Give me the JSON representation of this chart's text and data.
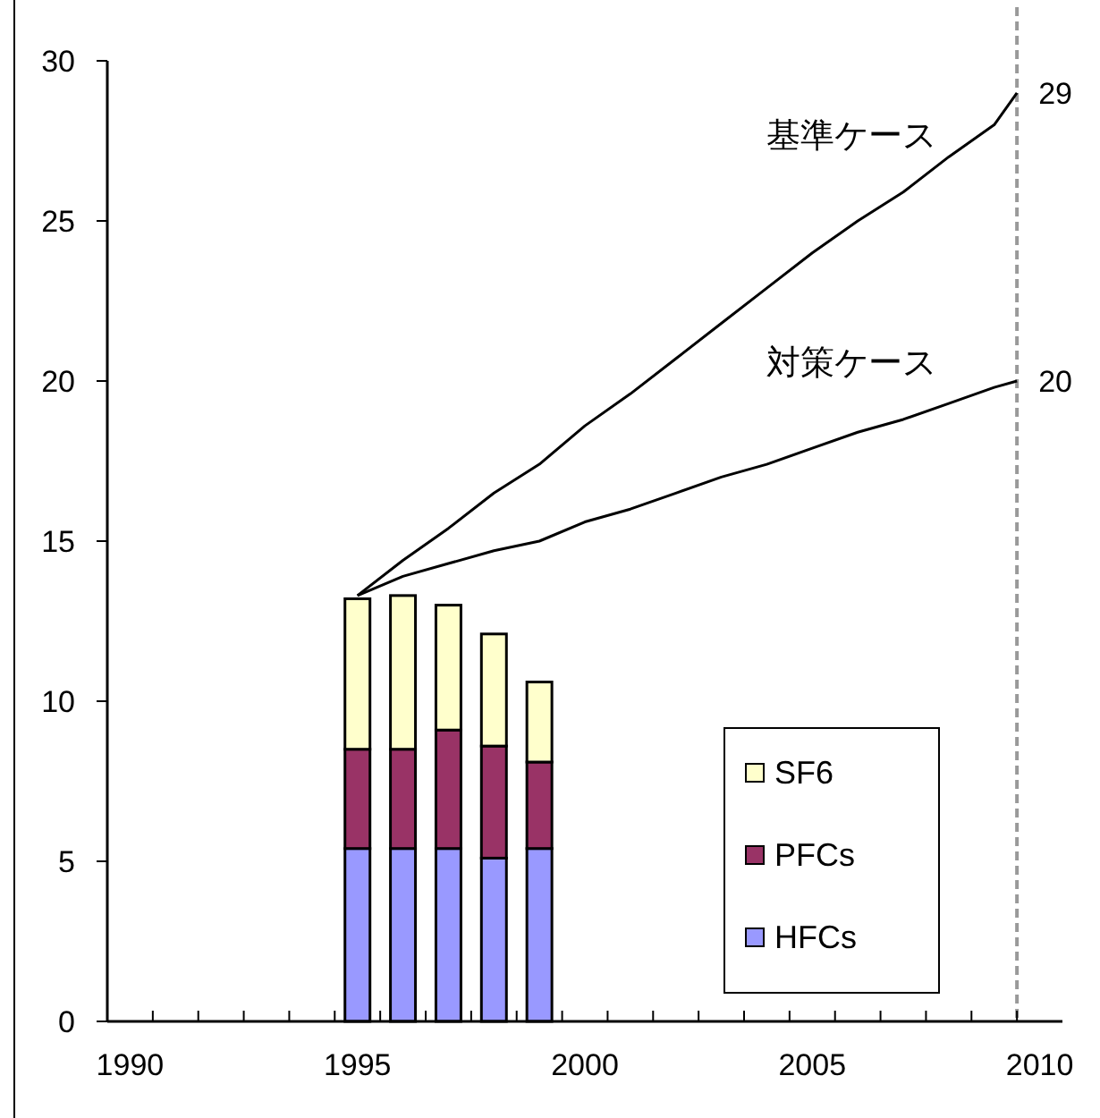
{
  "chart_data": {
    "type": "bar",
    "stacked": true,
    "xlim": [
      1989.5,
      2010.5
    ],
    "xticks": [
      1990,
      1995,
      2000,
      2005,
      2010,
      {
        "value": 1990.5,
        "label": null
      },
      {
        "value": 1991.5,
        "label": null
      },
      {
        "value": 1992.5,
        "label": null
      },
      {
        "value": 1993.5,
        "label": null
      },
      {
        "value": 1994.5,
        "label": null
      },
      {
        "value": 1995.5,
        "label": null
      },
      {
        "value": 1996.5,
        "label": null
      },
      {
        "value": 1997.5,
        "label": null
      },
      {
        "value": 1998.5,
        "label": null
      },
      {
        "value": 1999.5,
        "label": null
      },
      {
        "value": 2000.5,
        "label": null
      },
      {
        "value": 2001.5,
        "label": null
      },
      {
        "value": 2002.5,
        "label": null
      },
      {
        "value": 2003.5,
        "label": null
      },
      {
        "value": 2004.5,
        "label": null
      },
      {
        "value": 2005.5,
        "label": null
      },
      {
        "value": 2006.5,
        "label": null
      },
      {
        "value": 2007.5,
        "label": null
      },
      {
        "value": 2008.5,
        "label": null
      },
      {
        "value": 2009.5,
        "label": null
      }
    ],
    "ylim": [
      0,
      30
    ],
    "yticks": [
      0,
      5,
      10,
      15,
      20,
      25,
      30
    ],
    "grid": false,
    "legend": "bottom right",
    "series": [
      {
        "name": "HFCs",
        "color": "#9999ff",
        "x": [
          1995,
          1996,
          1997,
          1998,
          1999
        ],
        "values": [
          5.4,
          5.4,
          5.4,
          5.1,
          5.4
        ]
      },
      {
        "name": "PFCs",
        "color": "#993366",
        "x": [
          1995,
          1996,
          1997,
          1998,
          1999
        ],
        "values": [
          3.1,
          3.1,
          3.7,
          3.5,
          2.7
        ]
      },
      {
        "name": "SF6",
        "color": "#ffffcc",
        "x": [
          1995,
          1996,
          1997,
          1998,
          1999
        ],
        "values": [
          4.7,
          4.8,
          3.9,
          3.5,
          2.5
        ]
      },
      {
        "name": "基準ケース",
        "type": "line",
        "color": "#000000",
        "x": [
          1995,
          1996,
          1997,
          1998,
          1999,
          2000,
          2001,
          2002,
          2003,
          2004,
          2005,
          2006,
          2007,
          2008,
          2009,
          2009.5
        ],
        "values": [
          13.3,
          14.4,
          15.4,
          16.5,
          17.4,
          18.6,
          19.6,
          20.7,
          21.8,
          22.9,
          24.0,
          25.0,
          25.9,
          27.0,
          28.0,
          29.0
        ]
      },
      {
        "name": "対策ケース",
        "type": "line",
        "color": "#000000",
        "x": [
          1995,
          1996,
          1997,
          1998,
          1999,
          2000,
          2001,
          2002,
          2003,
          2004,
          2005,
          2006,
          2007,
          2008,
          2009,
          2009.5
        ],
        "values": [
          13.3,
          13.9,
          14.3,
          14.7,
          15.0,
          15.6,
          16.0,
          16.5,
          17.0,
          17.4,
          17.9,
          18.4,
          18.8,
          19.3,
          19.8,
          20.0
        ]
      }
    ],
    "ref_lines": [
      {
        "axis": "x",
        "value": 2009.5,
        "color": "#999999",
        "line_style": "dashed"
      }
    ],
    "annotations": [
      {
        "text": "29",
        "x": 2009.5,
        "y": 29
      },
      {
        "text": "20",
        "x": 2009.5,
        "y": 20
      }
    ]
  }
}
